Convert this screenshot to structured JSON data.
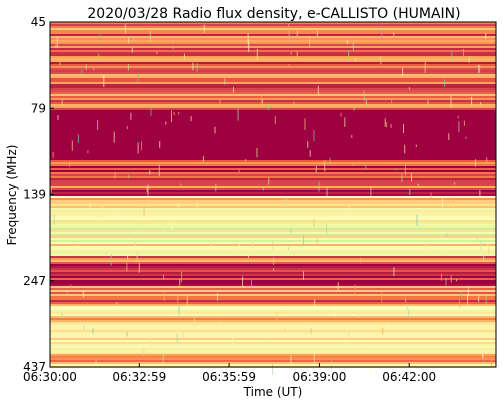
{
  "chart_data": {
    "type": "heatmap",
    "title": "2020/03/28  Radio flux density, e-CALLISTO (HUMAIN)",
    "xlabel": "Time (UT)",
    "ylabel": "Frequency (MHz)",
    "x_ticks": [
      "06:30:00",
      "06:32:59",
      "06:35:59",
      "06:39:00",
      "06:42:00"
    ],
    "x_tick_seconds": [
      0,
      179,
      359,
      540,
      720
    ],
    "xlim_seconds": [
      0,
      894
    ],
    "y_ticks": [
      "45",
      "79",
      "139",
      "247",
      "437"
    ],
    "y_tick_values": [
      45,
      79,
      139,
      247,
      437
    ],
    "ylim": [
      45,
      437
    ],
    "colormap": [
      "#9e0142",
      "#d53e4f",
      "#f46d43",
      "#fdae61",
      "#fee08b",
      "#ffffbf",
      "#e6f598",
      "#abdda4",
      "#66c2a5"
    ],
    "bands": [
      {
        "from": 45,
        "to": 79,
        "level": 0.22
      },
      {
        "from": 79,
        "to": 115,
        "level": 0.0
      },
      {
        "from": 115,
        "to": 139,
        "level": 0.18
      },
      {
        "from": 139,
        "to": 170,
        "level": 0.55
      },
      {
        "from": 170,
        "to": 182,
        "level": 0.72
      },
      {
        "from": 182,
        "to": 215,
        "level": 0.6
      },
      {
        "from": 215,
        "to": 226,
        "level": 0.2
      },
      {
        "from": 226,
        "to": 247,
        "level": 0.02
      },
      {
        "from": 247,
        "to": 258,
        "level": 0.05
      },
      {
        "from": 258,
        "to": 300,
        "level": 0.3
      },
      {
        "from": 300,
        "to": 372,
        "level": 0.5
      },
      {
        "from": 372,
        "to": 405,
        "level": 0.62
      },
      {
        "from": 405,
        "to": 437,
        "level": 0.4
      }
    ]
  }
}
